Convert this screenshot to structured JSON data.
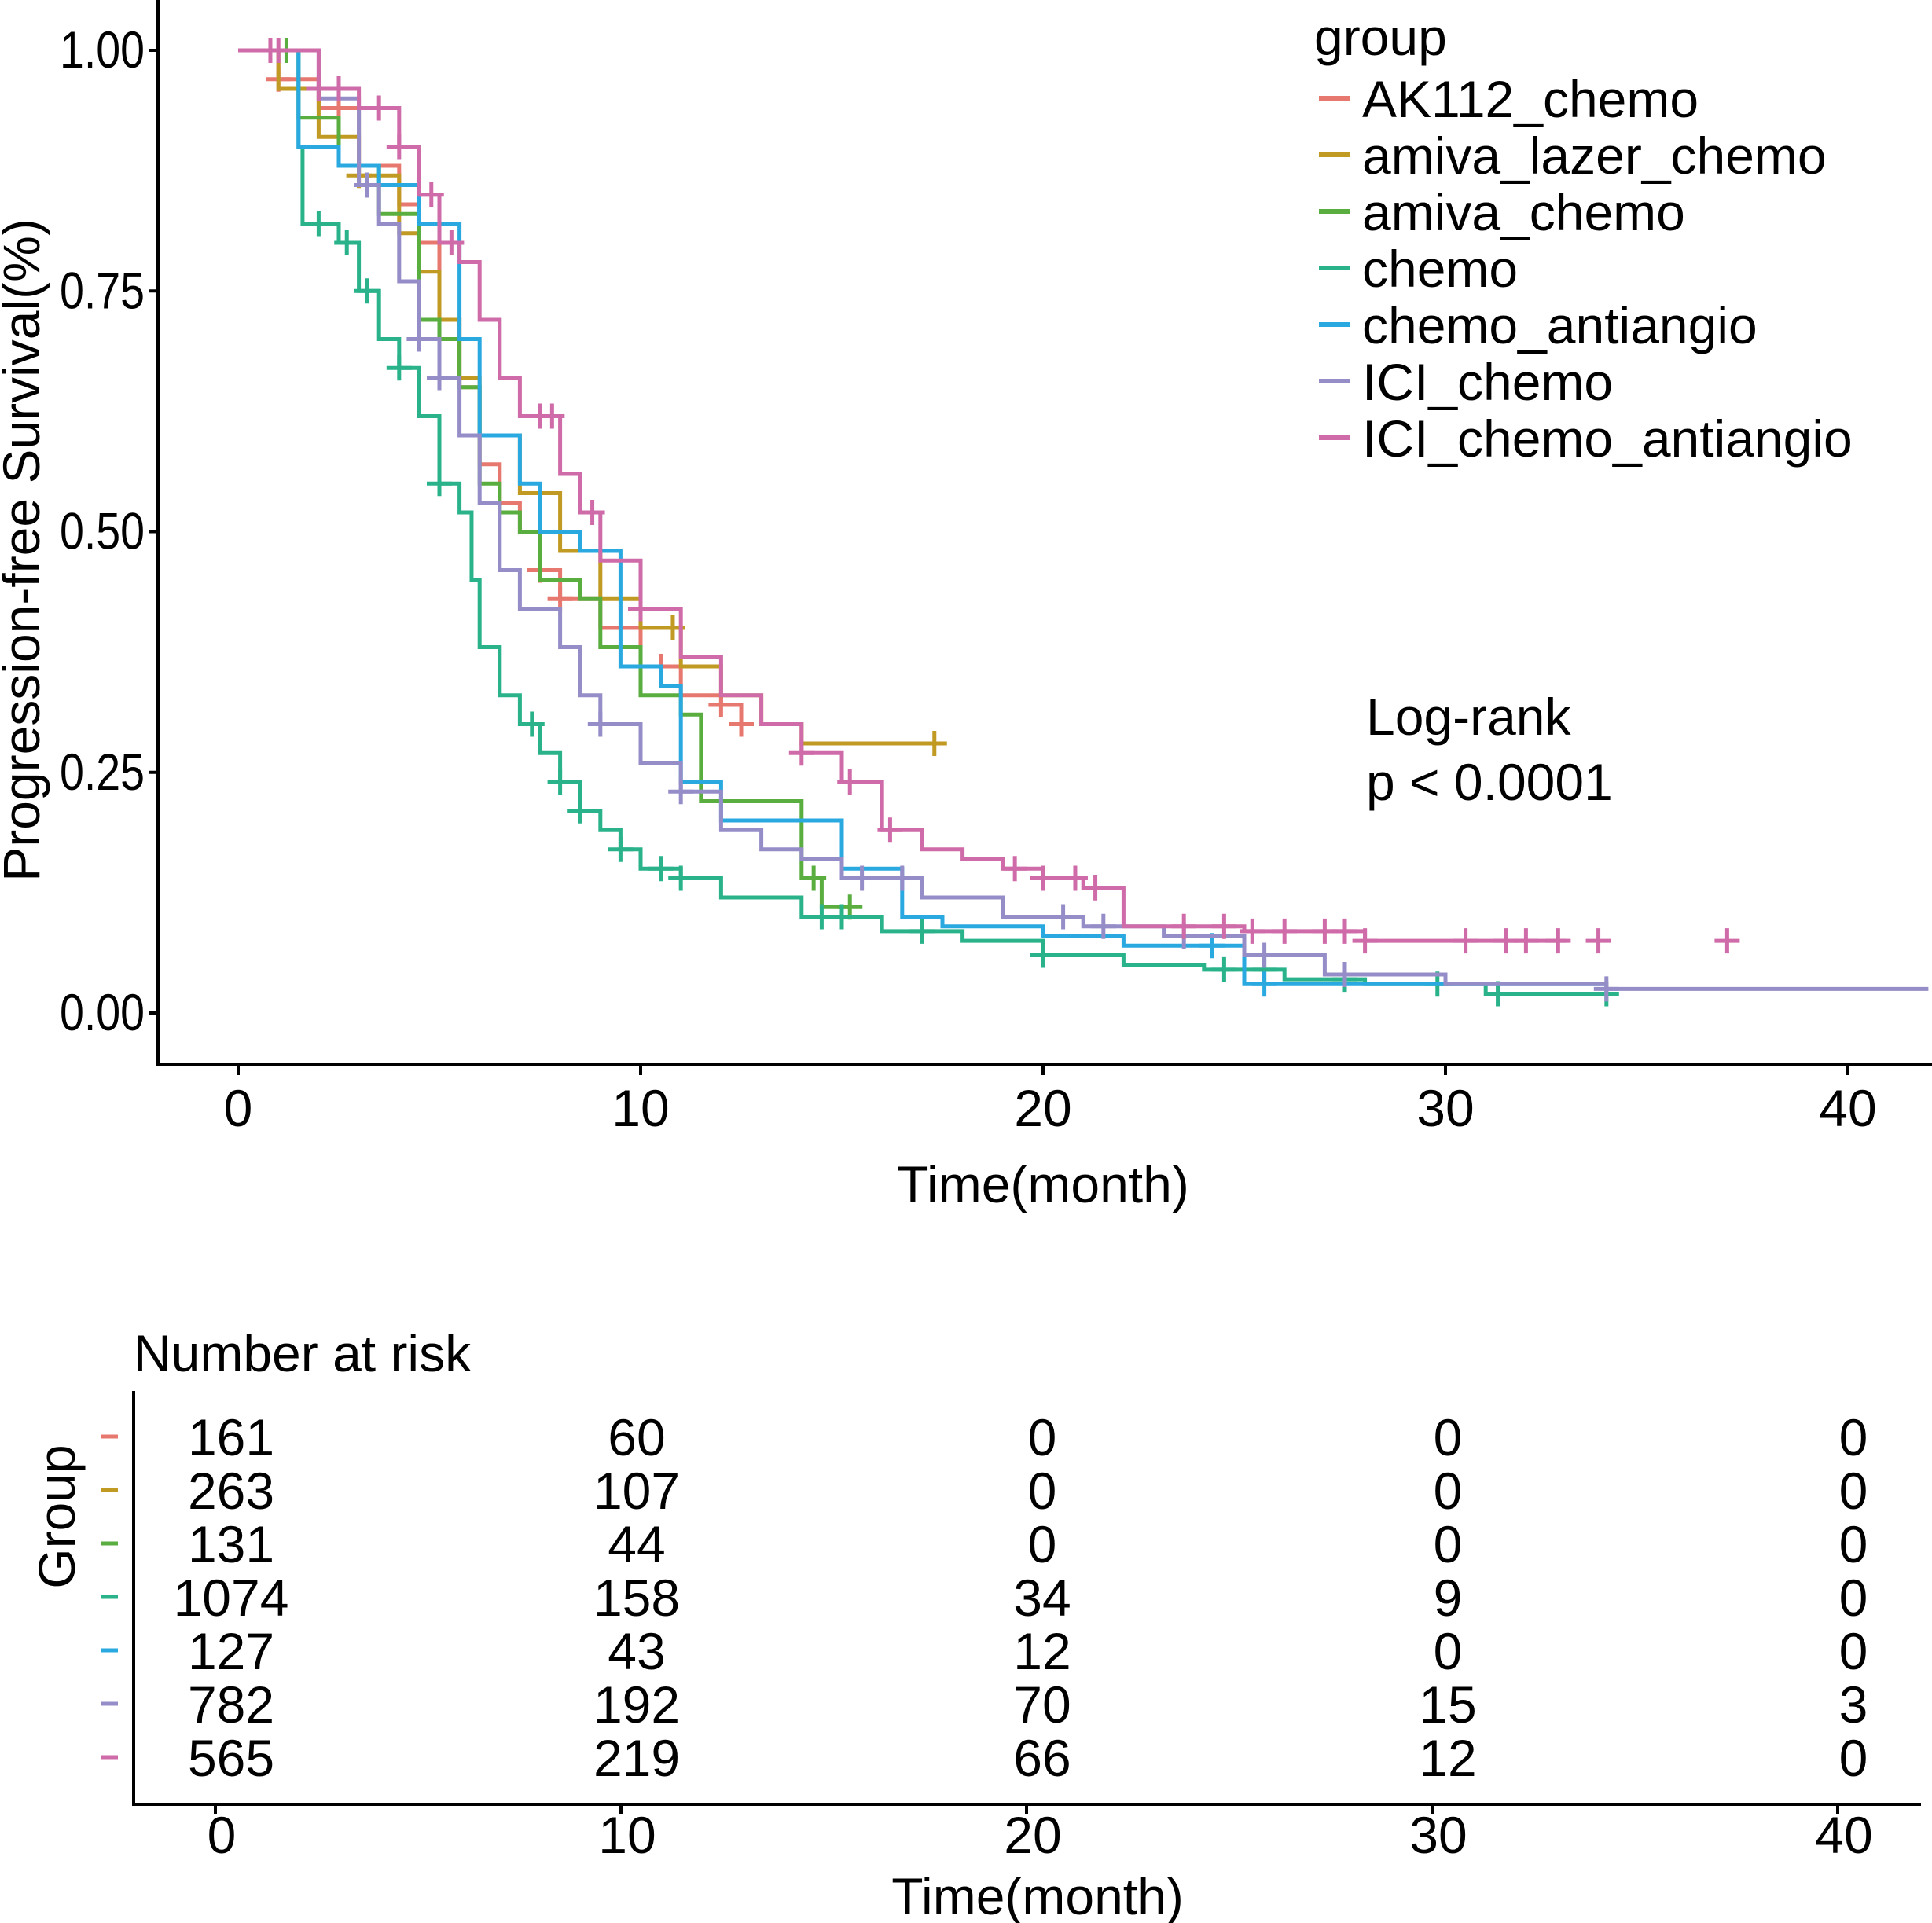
{
  "chart_data": {
    "type": "line",
    "subtype": "kaplan-meier",
    "ylabel": "Progression-free Survival(%)",
    "xlabel": "Time(month)",
    "xlim": [
      0,
      42
    ],
    "ylim": [
      0,
      1
    ],
    "xticks": [
      "0",
      "10",
      "20",
      "30",
      "40"
    ],
    "yticks": [
      "0.00",
      "0.25",
      "0.50",
      "0.75",
      "1.00"
    ],
    "legend_title": "group",
    "legend_position": "top-right",
    "annotation": [
      "Log-rank",
      "p < 0.0001"
    ],
    "series": [
      {
        "name": "AK112_chemo",
        "color": "#E7786F",
        "t": [
          0,
          1,
          2,
          3,
          4,
          4.5,
          5,
          5.5,
          6,
          6.5,
          7,
          7.5,
          8,
          9,
          10,
          11,
          12,
          12.5
        ],
        "s": [
          1,
          0.97,
          0.94,
          0.88,
          0.84,
          0.8,
          0.72,
          0.65,
          0.57,
          0.53,
          0.5,
          0.46,
          0.43,
          0.4,
          0.36,
          0.33,
          0.32,
          0.3
        ],
        "censor": [
          1,
          2.5,
          7.5,
          8,
          10.5,
          12,
          12.5
        ]
      },
      {
        "name": "amiva_lazer_chemo",
        "color": "#C09A22",
        "t": [
          0,
          1,
          2,
          3,
          4,
          4.5,
          5,
          5.5,
          6,
          7,
          8,
          9,
          10,
          11,
          12,
          13,
          14,
          17.3
        ],
        "s": [
          1,
          0.96,
          0.91,
          0.87,
          0.81,
          0.77,
          0.72,
          0.66,
          0.6,
          0.54,
          0.48,
          0.43,
          0.4,
          0.36,
          0.33,
          0.3,
          0.28,
          0.28
        ],
        "censor": [
          3,
          10.8,
          17.3
        ]
      },
      {
        "name": "amiva_chemo",
        "color": "#5AAE3F",
        "t": [
          0,
          1.5,
          2.5,
          3.5,
          4.5,
          5,
          5.5,
          6,
          6.5,
          7,
          7.5,
          8.5,
          9,
          10,
          11,
          11.5,
          14,
          14.5,
          15.2
        ],
        "s": [
          1,
          0.93,
          0.88,
          0.83,
          0.72,
          0.7,
          0.65,
          0.55,
          0.52,
          0.5,
          0.45,
          0.43,
          0.38,
          0.33,
          0.31,
          0.22,
          0.14,
          0.11,
          0.11
        ],
        "censor": [
          1.2,
          14.3,
          15.2
        ]
      },
      {
        "name": "chemo",
        "color": "#2AB38A",
        "t": [
          0,
          1.5,
          1.6,
          2.5,
          3,
          3.5,
          4,
          4.5,
          5,
          5.5,
          5.8,
          6,
          6.5,
          7,
          7.5,
          8,
          8.5,
          9,
          9.5,
          10,
          11,
          12,
          14,
          16,
          18,
          20,
          22,
          24,
          26,
          28,
          31,
          34
        ],
        "s": [
          1,
          0.9,
          0.82,
          0.8,
          0.75,
          0.7,
          0.67,
          0.62,
          0.55,
          0.52,
          0.45,
          0.38,
          0.33,
          0.3,
          0.27,
          0.24,
          0.21,
          0.19,
          0.17,
          0.15,
          0.14,
          0.12,
          0.1,
          0.085,
          0.075,
          0.06,
          0.05,
          0.045,
          0.035,
          0.03,
          0.02,
          0.02
        ],
        "censor": [
          2,
          2.7,
          3.2,
          4,
          5,
          7.3,
          8,
          8.5,
          9.5,
          10.5,
          11,
          14.5,
          15,
          17,
          20,
          24.5,
          25.5,
          27.5,
          29.8,
          31.3,
          34
        ]
      },
      {
        "name": "chemo_antiangio",
        "color": "#2AA9E0",
        "t": [
          0,
          1.5,
          2.5,
          3.5,
          4.5,
          5.5,
          6,
          7,
          7.5,
          8.5,
          9.5,
          10.5,
          11,
          12,
          14,
          15,
          16.5,
          17.5,
          20,
          22,
          25,
          34
        ],
        "s": [
          1,
          0.9,
          0.88,
          0.86,
          0.82,
          0.7,
          0.6,
          0.55,
          0.5,
          0.48,
          0.36,
          0.34,
          0.24,
          0.2,
          0.2,
          0.15,
          0.1,
          0.09,
          0.08,
          0.07,
          0.03,
          0.03
        ],
        "censor": [
          24.2,
          25.5
        ]
      },
      {
        "name": "ICI_chemo",
        "color": "#958DC8",
        "t": [
          0,
          2,
          3,
          3.5,
          4,
          4.5,
          5,
          5.5,
          6,
          6.5,
          7,
          8,
          8.5,
          9,
          10,
          11,
          12,
          13,
          14,
          15,
          17,
          19,
          21,
          23,
          25,
          27,
          30,
          34,
          42
        ],
        "s": [
          1,
          0.95,
          0.86,
          0.82,
          0.76,
          0.7,
          0.66,
          0.6,
          0.53,
          0.46,
          0.42,
          0.38,
          0.33,
          0.3,
          0.26,
          0.23,
          0.19,
          0.17,
          0.16,
          0.14,
          0.12,
          0.1,
          0.09,
          0.08,
          0.06,
          0.04,
          0.03,
          0.025,
          0.025
        ],
        "censor": [
          3.2,
          4.5,
          5,
          9,
          11,
          15.5,
          16.5,
          20.5,
          21.5,
          23.5,
          25.5,
          27.5,
          34
        ]
      },
      {
        "name": "ICI_chemo_antiangio",
        "color": "#CF6BA8",
        "t": [
          0,
          2,
          3,
          4,
          4.5,
          5,
          5.5,
          6,
          6.5,
          7,
          8,
          8.5,
          9,
          10,
          11,
          12,
          13,
          14,
          15,
          16,
          17,
          18,
          19,
          20,
          21,
          22,
          25,
          28,
          33
        ],
        "s": [
          1,
          0.96,
          0.94,
          0.9,
          0.85,
          0.8,
          0.78,
          0.72,
          0.66,
          0.62,
          0.56,
          0.52,
          0.47,
          0.42,
          0.37,
          0.33,
          0.3,
          0.27,
          0.24,
          0.19,
          0.17,
          0.16,
          0.15,
          0.14,
          0.13,
          0.09,
          0.085,
          0.075,
          0.075
        ],
        "censor": [
          0.8,
          1,
          2,
          2.5,
          3.5,
          4,
          4.8,
          5.3,
          7.5,
          7.8,
          8.8,
          10,
          14,
          15.2,
          16.2,
          19.3,
          20,
          20.8,
          21.3,
          23.5,
          24.5,
          25.2,
          26,
          27,
          27.5,
          28,
          30.5,
          31.5,
          32,
          32.8,
          33.8,
          37
        ]
      }
    ],
    "risk_table": {
      "title": "Number at risk",
      "ylabel": "Group",
      "xlabel": "Time(month)",
      "times": [
        "0",
        "10",
        "20",
        "30",
        "40"
      ],
      "rows": [
        [
          "161",
          "60",
          "0",
          "0",
          "0"
        ],
        [
          "263",
          "107",
          "0",
          "0",
          "0"
        ],
        [
          "131",
          "44",
          "0",
          "0",
          "0"
        ],
        [
          "1074",
          "158",
          "34",
          "9",
          "0"
        ],
        [
          "127",
          "43",
          "12",
          "0",
          "0"
        ],
        [
          "782",
          "192",
          "70",
          "15",
          "3"
        ],
        [
          "565",
          "219",
          "66",
          "12",
          "0"
        ]
      ]
    }
  }
}
